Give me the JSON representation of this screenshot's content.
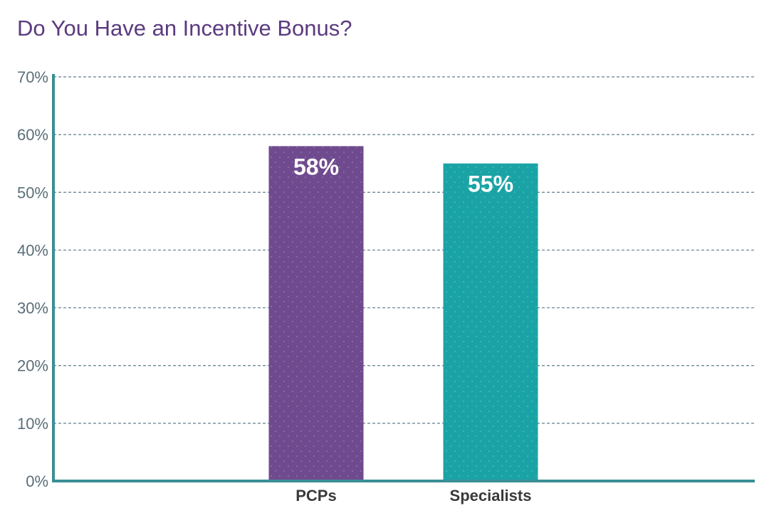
{
  "chart_data": {
    "type": "bar",
    "title": "Do You Have an Incentive Bonus?",
    "xlabel": "",
    "ylabel": "",
    "categories": [
      "PCPs",
      "Specialists"
    ],
    "values": [
      58,
      55
    ],
    "data_labels": [
      "58%",
      "55%"
    ],
    "ylim": [
      0,
      70
    ],
    "yticks": [
      0,
      10,
      20,
      30,
      40,
      50,
      60,
      70
    ],
    "ytick_labels": [
      "0%",
      "10%",
      "20%",
      "30%",
      "40%",
      "50%",
      "60%",
      "70%"
    ],
    "grid": true,
    "legend": "none"
  },
  "colors": {
    "title": "#5b3a7e",
    "tick": "#5a6f78",
    "axis": "#3a8f95",
    "grid": "#5f7f8c",
    "bars": [
      "#6f4a8e",
      "#1aa3a5"
    ],
    "category_label": "#3a3a3a",
    "data_label": "#ffffff"
  }
}
